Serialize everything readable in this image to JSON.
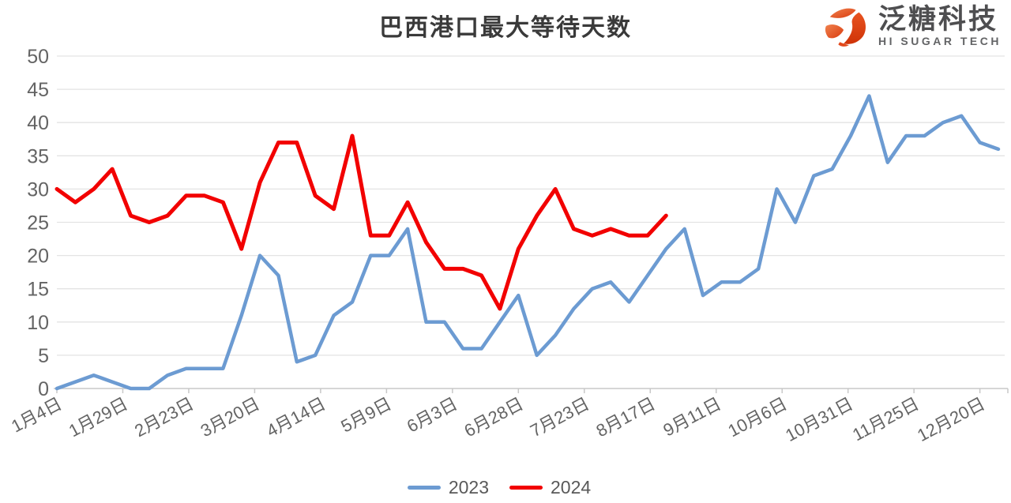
{
  "title": "巴西港口最大等待天数",
  "logo": {
    "name": "泛糖科技",
    "subtitle": "HI SUGAR TECH",
    "icon": "swirl-sphere-icon",
    "accent_color": "#e2491b"
  },
  "legend": {
    "items": [
      "2023",
      "2024"
    ]
  },
  "colors": {
    "series_2023": "#6C9BD2",
    "series_2024": "#F20000",
    "gridline": "#e3e3e3",
    "axis_line": "#c8c8c8",
    "axis_text": "#646464",
    "title_text": "#3a3a3a"
  },
  "chart_data": {
    "type": "line",
    "title": "巴西港口最大等待天数",
    "xlabel": "",
    "ylabel": "",
    "ylim": [
      0,
      50
    ],
    "y_ticks": [
      0,
      5,
      10,
      15,
      20,
      25,
      30,
      35,
      40,
      45,
      50
    ],
    "x_tick_labels": [
      "1月4日",
      "1月29日",
      "2月23日",
      "3月20日",
      "4月14日",
      "5月9日",
      "6月3日",
      "6月28日",
      "7月23日",
      "8月17日",
      "9月11日",
      "10月6日",
      "10月31日",
      "11月25日",
      "12月20日"
    ],
    "layout": {
      "grid": "horizontal-only",
      "legend_position": "bottom-center",
      "x_label_rotation_deg": -28,
      "tick_interval_days": 25,
      "point_interval_days": 7
    },
    "series": [
      {
        "name": "2023",
        "color": "#6C9BD2",
        "values": [
          0,
          1,
          2,
          1,
          0,
          0,
          2,
          3,
          3,
          3,
          11,
          20,
          17,
          4,
          5,
          11,
          13,
          20,
          20,
          24,
          10,
          10,
          6,
          6,
          10,
          14,
          5,
          8,
          12,
          15,
          16,
          13,
          17,
          21,
          24,
          14,
          16,
          16,
          18,
          30,
          25,
          32,
          33,
          38,
          44,
          34,
          38,
          38,
          40,
          41,
          37,
          36
        ]
      },
      {
        "name": "2024",
        "color": "#F20000",
        "values": [
          30,
          28,
          30,
          33,
          26,
          25,
          26,
          29,
          29,
          28,
          21,
          31,
          37,
          37,
          29,
          27,
          38,
          23,
          23,
          28,
          22,
          18,
          18,
          17,
          12,
          21,
          26,
          30,
          24,
          23,
          24,
          23,
          23,
          26
        ]
      }
    ]
  }
}
